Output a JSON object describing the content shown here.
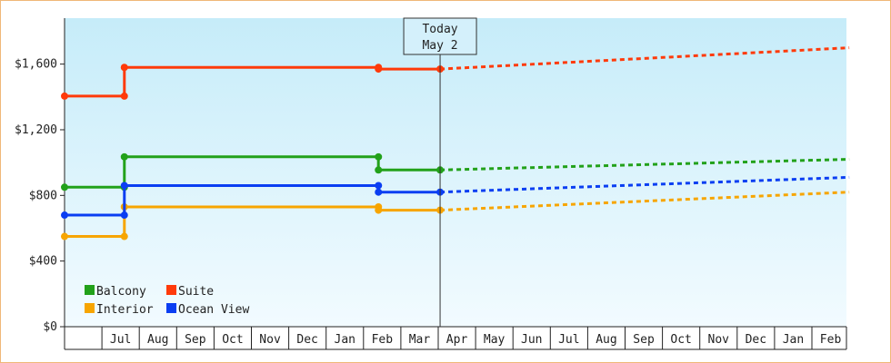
{
  "chart_data": {
    "type": "line",
    "step": true,
    "title": "",
    "xlabel": "",
    "ylabel": "",
    "ylim": [
      0,
      1880
    ],
    "y_ticks": [
      {
        "value": 0,
        "label": "$0"
      },
      {
        "value": 400,
        "label": "$400"
      },
      {
        "value": 800,
        "label": "$800"
      },
      {
        "value": 1200,
        "label": "$1,200"
      },
      {
        "value": 1600,
        "label": "$1,600"
      }
    ],
    "x_unit": "months since start of Jun",
    "x_range": [
      0,
      21
    ],
    "months": [
      "Jul",
      "Aug",
      "Sep",
      "Oct",
      "Nov",
      "Dec",
      "Jan",
      "Feb",
      "Mar",
      "Apr",
      "May",
      "Jun",
      "Jul",
      "Aug",
      "Sep",
      "Oct",
      "Nov",
      "Dec",
      "Jan",
      "Feb"
    ],
    "today": {
      "line1": "Today",
      "line2": "May 2",
      "x": 10.05
    },
    "grid": false,
    "legend_position": "bottom-left",
    "series": [
      {
        "name": "Balcony",
        "color": "#22a11a",
        "actual": [
          [
            0,
            850
          ],
          [
            1.6,
            850
          ],
          [
            1.6,
            1035
          ],
          [
            8.4,
            1035
          ],
          [
            8.4,
            955
          ],
          [
            10.05,
            955
          ]
        ],
        "markers": [
          [
            0,
            850
          ],
          [
            1.6,
            850
          ],
          [
            1.6,
            1035
          ],
          [
            8.4,
            1035
          ],
          [
            8.4,
            955
          ],
          [
            10.05,
            955
          ]
        ],
        "forecast": [
          [
            10.05,
            955
          ],
          [
            21,
            1020
          ]
        ]
      },
      {
        "name": "Suite",
        "color": "#ff3a0a",
        "actual": [
          [
            0,
            1405
          ],
          [
            1.6,
            1405
          ],
          [
            1.6,
            1580
          ],
          [
            8.4,
            1580
          ],
          [
            8.4,
            1570
          ],
          [
            10.05,
            1570
          ]
        ],
        "markers": [
          [
            0,
            1405
          ],
          [
            1.6,
            1405
          ],
          [
            1.6,
            1580
          ],
          [
            8.4,
            1580
          ],
          [
            8.4,
            1570
          ],
          [
            10.05,
            1570
          ]
        ],
        "forecast": [
          [
            10.05,
            1570
          ],
          [
            21,
            1700
          ]
        ]
      },
      {
        "name": "Interior",
        "color": "#f7a500",
        "actual": [
          [
            0,
            550
          ],
          [
            1.6,
            550
          ],
          [
            1.6,
            730
          ],
          [
            8.4,
            730
          ],
          [
            8.4,
            710
          ],
          [
            10.05,
            710
          ]
        ],
        "markers": [
          [
            0,
            550
          ],
          [
            1.6,
            550
          ],
          [
            1.6,
            730
          ],
          [
            8.4,
            730
          ],
          [
            8.4,
            710
          ],
          [
            10.05,
            710
          ]
        ],
        "forecast": [
          [
            10.05,
            710
          ],
          [
            21,
            820
          ]
        ]
      },
      {
        "name": "Ocean View",
        "color": "#0a3ef2",
        "actual": [
          [
            0,
            680
          ],
          [
            1.6,
            680
          ],
          [
            1.6,
            860
          ],
          [
            8.4,
            860
          ],
          [
            8.4,
            820
          ],
          [
            10.05,
            820
          ]
        ],
        "markers": [
          [
            0,
            680
          ],
          [
            1.6,
            680
          ],
          [
            1.6,
            860
          ],
          [
            8.4,
            860
          ],
          [
            8.4,
            820
          ],
          [
            10.05,
            820
          ]
        ],
        "forecast": [
          [
            10.05,
            820
          ],
          [
            21,
            910
          ]
        ]
      }
    ]
  }
}
